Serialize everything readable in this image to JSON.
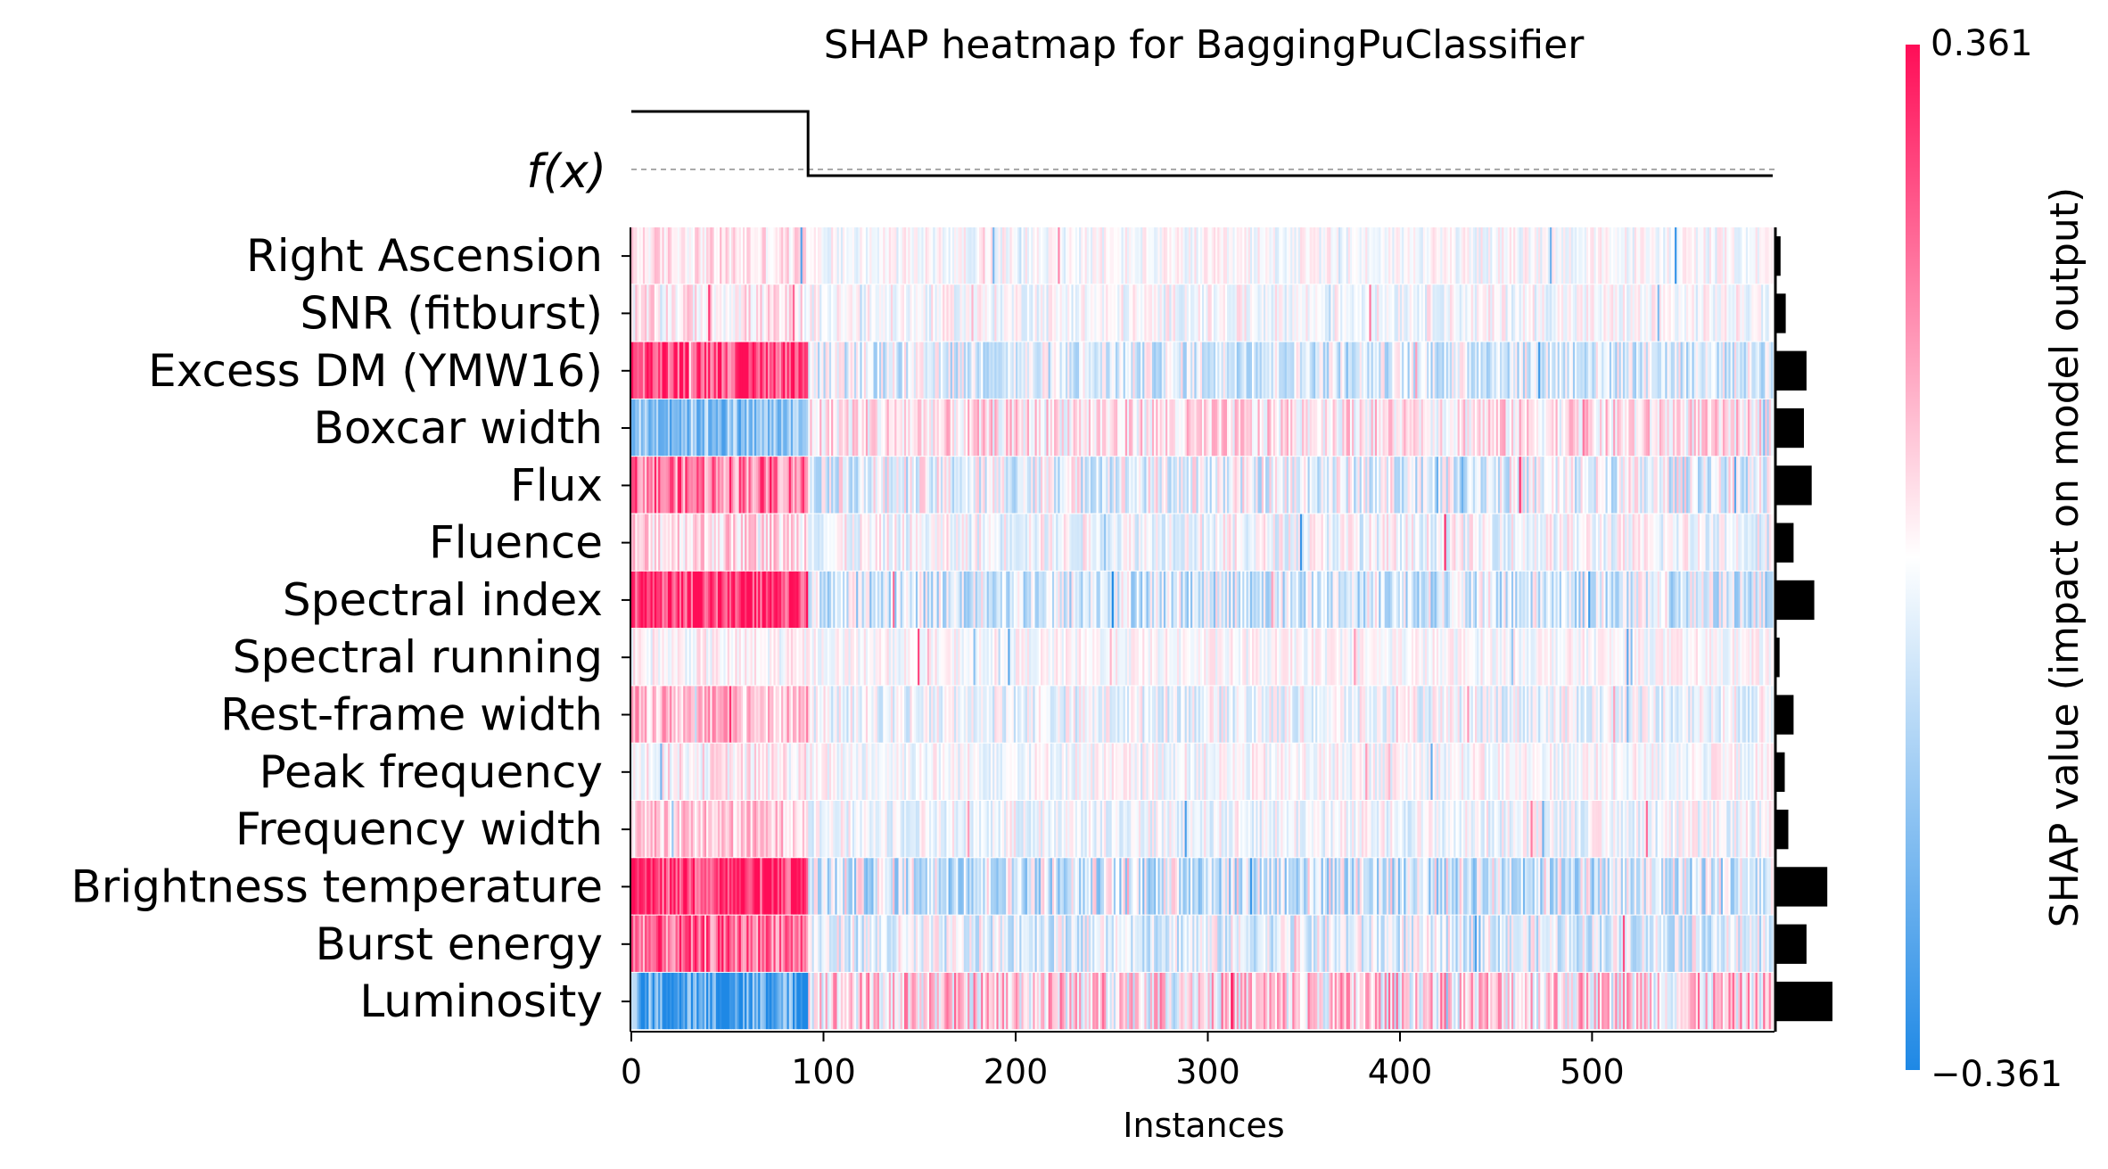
{
  "chart_data": {
    "type": "heatmap",
    "title": "SHAP heatmap for BaggingPuClassifier",
    "xlabel": "Instances",
    "fx_label": "f(x)",
    "colorbar_label": "SHAP value (impact on model output)",
    "colorbar_max_label": "0.361",
    "colorbar_min_label": "−0.361",
    "color_range": [
      -0.361,
      0.361
    ],
    "colors": {
      "positive": "#ff0d57",
      "neutral": "#ffffff",
      "negative": "#1e88e5"
    },
    "n_instances": 594,
    "x_ticks": [
      0,
      100,
      200,
      300,
      400,
      500
    ],
    "features": [
      "Right Ascension",
      "SNR (fitburst)",
      "Excess DM (YMW16)",
      "Boxcar width",
      "Flux",
      "Fluence",
      "Spectral index",
      "Spectral running",
      "Rest-frame width",
      "Peak frequency",
      "Frequency width",
      "Brightness temperature",
      "Burst energy",
      "Luminosity"
    ],
    "mean_abs_shap": [
      0.01,
      0.02,
      0.06,
      0.055,
      0.07,
      0.035,
      0.075,
      0.008,
      0.035,
      0.018,
      0.025,
      0.1,
      0.06,
      0.11
    ],
    "segment_mean_shap": [
      {
        "segment": "instances 0-92",
        "values": [
          0.04,
          0.03,
          0.28,
          -0.18,
          0.2,
          0.06,
          0.32,
          0.005,
          0.1,
          0.02,
          0.08,
          0.33,
          0.22,
          -0.3
        ]
      },
      {
        "segment": "instances 92-594",
        "values": [
          -0.005,
          -0.005,
          -0.05,
          0.04,
          -0.03,
          -0.01,
          -0.06,
          0.0,
          -0.02,
          -0.005,
          -0.015,
          -0.06,
          -0.04,
          0.06
        ]
      }
    ],
    "fx": {
      "segments": [
        {
          "from": 0,
          "to": 92,
          "level": "high"
        },
        {
          "from": 92,
          "to": 594,
          "level": "low"
        }
      ],
      "baseline": "dashed"
    }
  }
}
